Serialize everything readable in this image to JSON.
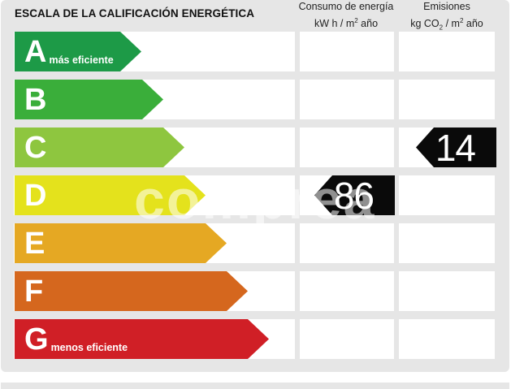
{
  "header": {
    "title": "ESCALA DE LA CALIFICACIÓN ENERGÉTICA",
    "consumption_line1": "Consumo de energía",
    "consumption_line2_a": "kW h  / m",
    "consumption_line2_sup": "2",
    "consumption_line2_b": " año",
    "emissions_line1": "Emisiones",
    "emissions_line2_a": "kg CO",
    "emissions_line2_sub": "2",
    "emissions_line2_b": "  / m",
    "emissions_line2_sup": "2",
    "emissions_line2_c": " año"
  },
  "ratings": [
    {
      "letter": "A",
      "label": "más eficiente",
      "color": "#1d9a47"
    },
    {
      "letter": "B",
      "label": "",
      "color": "#3aae3a"
    },
    {
      "letter": "C",
      "label": "",
      "color": "#8ec63f"
    },
    {
      "letter": "D",
      "label": "",
      "color": "#e4e21c"
    },
    {
      "letter": "E",
      "label": "",
      "color": "#e5a823"
    },
    {
      "letter": "F",
      "label": "",
      "color": "#d5671e"
    },
    {
      "letter": "G",
      "label": "menos eficiente",
      "color": "#d01f26"
    }
  ],
  "consumption": {
    "rating": "D",
    "value": "86"
  },
  "emissions": {
    "rating": "C",
    "value": "14"
  },
  "watermark": "comprea",
  "colors": {
    "badge": "#0a0a0a",
    "panel": "#e6e6e6"
  }
}
